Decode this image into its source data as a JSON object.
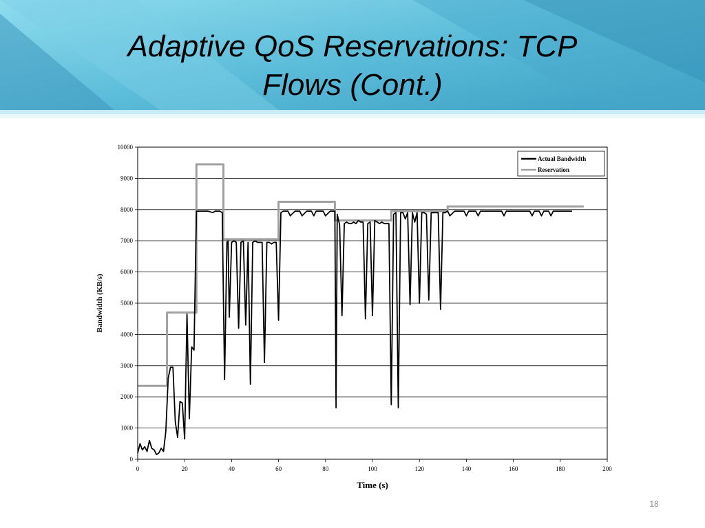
{
  "slide": {
    "title_line1": "Adaptive QoS Reservations: TCP",
    "title_line2": "Flows (Cont.)",
    "number": "18",
    "colors": {
      "banner_light": "#7fd3e8",
      "banner_mid": "#5cbfdc",
      "banner_dark": "#2f8fb5"
    }
  },
  "chart_data": {
    "type": "line",
    "xlabel": "Time (s)",
    "ylabel": "Bandwidth (KB/s)",
    "xlim": [
      0,
      200
    ],
    "ylim": [
      0,
      10000
    ],
    "xticks": [
      "0",
      "20",
      "40",
      "60",
      "80",
      "100",
      "120",
      "140",
      "160",
      "180",
      "200"
    ],
    "yticks": [
      "0",
      "1000",
      "2000",
      "3000",
      "4000",
      "5000",
      "6000",
      "7000",
      "8000",
      "9000",
      "10000"
    ],
    "grid": "horizontal",
    "legend": "top-right",
    "series": [
      {
        "name": "Actual Bandwidth",
        "color": "#000000",
        "x": [
          0,
          1,
          2,
          3,
          4,
          5,
          6,
          7,
          8,
          9,
          10,
          11,
          12,
          13,
          14,
          15,
          16,
          17,
          18,
          19,
          20,
          21,
          22,
          23,
          24,
          25,
          26,
          27,
          30,
          32,
          33,
          35,
          36,
          37,
          38,
          38.5,
          39,
          40,
          41,
          42,
          43,
          44,
          45,
          46,
          47,
          48,
          49,
          50,
          51,
          53,
          54,
          55,
          56,
          57,
          58,
          59,
          60,
          61,
          62,
          64,
          65,
          67,
          68,
          69,
          70,
          72,
          73,
          74,
          75,
          76,
          78,
          79,
          80,
          82,
          84,
          84.5,
          85,
          86,
          87,
          88,
          89,
          90,
          91,
          92,
          93,
          94,
          95,
          96,
          97,
          98,
          99,
          100,
          101,
          102,
          103,
          104,
          105,
          107,
          108,
          109,
          110,
          111,
          112,
          113,
          114,
          115,
          116,
          117,
          118,
          119,
          120,
          121,
          122,
          123,
          124,
          125,
          126,
          127,
          128,
          129,
          130,
          131,
          132,
          133,
          135,
          136,
          137,
          138,
          139,
          140,
          141,
          142,
          143,
          144,
          145,
          146,
          147,
          148,
          149,
          150,
          152,
          155,
          156,
          157,
          158,
          160,
          162,
          165,
          166,
          167,
          168,
          169,
          170,
          171,
          172,
          173,
          174,
          175,
          176,
          177,
          178,
          179,
          180,
          182,
          185
        ],
        "y": [
          200,
          500,
          300,
          400,
          250,
          600,
          350,
          300,
          150,
          200,
          350,
          250,
          900,
          2600,
          2950,
          2950,
          1200,
          700,
          1850,
          1800,
          650,
          4650,
          1300,
          3600,
          3500,
          7950,
          7950,
          7950,
          7950,
          7900,
          7950,
          7950,
          7900,
          2550,
          6950,
          7000,
          4550,
          6950,
          7000,
          6950,
          4200,
          6950,
          7000,
          4300,
          6950,
          2400,
          6950,
          7000,
          6950,
          6950,
          3100,
          6950,
          6950,
          6900,
          6950,
          6950,
          4450,
          7900,
          7950,
          7950,
          7800,
          7950,
          7950,
          7950,
          7800,
          7950,
          7950,
          7950,
          7800,
          7950,
          7950,
          7950,
          7800,
          7950,
          7950,
          1650,
          7850,
          7500,
          4600,
          7550,
          7600,
          7550,
          7550,
          7600,
          7550,
          7650,
          7600,
          7600,
          4500,
          7550,
          7600,
          4600,
          7650,
          7600,
          7550,
          7600,
          7550,
          7550,
          1750,
          7850,
          7900,
          1650,
          7900,
          7900,
          7700,
          7900,
          4950,
          7900,
          7600,
          7900,
          5000,
          7900,
          7900,
          7850,
          5100,
          7900,
          7900,
          7900,
          7900,
          4800,
          7900,
          7900,
          7950,
          7800,
          7950,
          7950,
          7950,
          7950,
          7950,
          7800,
          7950,
          7950,
          7950,
          7950,
          7800,
          7950,
          7950,
          7950,
          7950,
          7950,
          7950,
          7950,
          7800,
          7950,
          7950,
          7950,
          7950,
          7950,
          7950,
          7950,
          7800,
          7950,
          7950,
          7950,
          7800,
          7950,
          7950,
          7950,
          7800,
          7950,
          7950,
          7950,
          7950,
          7950,
          7950
        ]
      },
      {
        "name": "Reservation",
        "color": "#a0a0a0",
        "x": [
          0,
          12.5,
          12.5,
          25,
          25,
          36.5,
          36.5,
          60,
          60,
          84,
          84,
          108,
          108,
          132,
          132,
          190
        ],
        "y": [
          2350,
          2350,
          4700,
          4700,
          9450,
          9450,
          7050,
          7050,
          8250,
          8250,
          7650,
          7650,
          7950,
          7950,
          8100,
          8100
        ]
      }
    ]
  }
}
